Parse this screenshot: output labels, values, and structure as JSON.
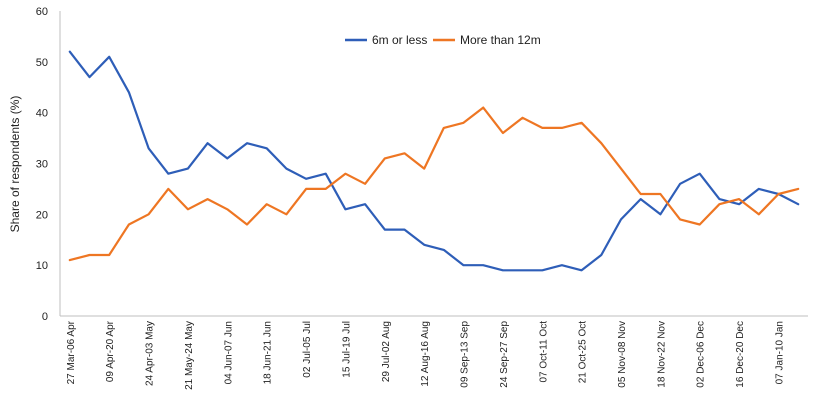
{
  "chart_data": {
    "type": "line",
    "title": "",
    "xlabel": "",
    "ylabel": "Share of respondents (%)",
    "ylim": [
      0,
      60
    ],
    "yticks": [
      0,
      10,
      20,
      30,
      40,
      50,
      60
    ],
    "grid": false,
    "legend_position": "top-center",
    "categories": [
      "27 Mar-06 Apr",
      "",
      "09 Apr-20 Apr",
      "",
      "24 Apr-03 May",
      "",
      "21 May-24 May",
      "",
      "04 Jun-07 Jun",
      "",
      "18 Jun-21 Jun",
      "",
      "02 Jul-05 Jul",
      "",
      "15 Jul-19 Jul",
      "",
      "29 Jul-02 Aug",
      "",
      "12 Aug-16 Aug",
      "",
      "09 Sep-13 Sep",
      "",
      "24 Sep-27 Sep",
      "",
      "07 Oct-11 Oct",
      "",
      "21 Oct-25 Oct",
      "",
      "05 Nov-08 Nov",
      "",
      "18 Nov-22 Nov",
      "",
      "02 Dec-06 Dec",
      "",
      "16 Dec-20 Dec",
      "",
      "07 Jan-10 Jan",
      ""
    ],
    "series": [
      {
        "name": "6m or less",
        "color": "#2E5EB8",
        "values": [
          52,
          47,
          51,
          44,
          33,
          28,
          29,
          34,
          31,
          34,
          33,
          29,
          27,
          28,
          21,
          22,
          17,
          17,
          14,
          13,
          10,
          10,
          9,
          9,
          9,
          10,
          9,
          12,
          19,
          23,
          20,
          26,
          28,
          23,
          22,
          25,
          24,
          22
        ]
      },
      {
        "name": "More than 12m",
        "color": "#EE7623",
        "values": [
          11,
          12,
          12,
          18,
          20,
          25,
          21,
          23,
          21,
          18,
          22,
          20,
          25,
          25,
          28,
          26,
          31,
          32,
          29,
          37,
          38,
          41,
          36,
          39,
          37,
          37,
          38,
          34,
          29,
          24,
          24,
          19,
          18,
          22,
          23,
          20,
          24,
          25
        ]
      }
    ]
  }
}
